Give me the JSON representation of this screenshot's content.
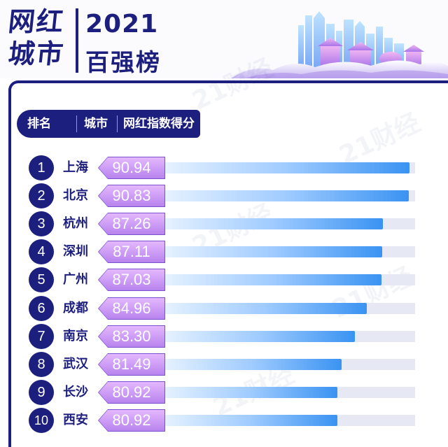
{
  "header": {
    "logo_line1": "网红",
    "logo_line2": "城市",
    "year": "2021",
    "subtitle": "百强榜"
  },
  "table": {
    "col_rank": "排名",
    "col_city": "城市",
    "col_score": "网红指数得分"
  },
  "watermark": "21财经",
  "colors": {
    "navy": "#1d1f7e",
    "score_fill": "#c99cf6",
    "bar_start": "#e6f2ff",
    "bar_end": "#3a93f2",
    "track": "#e6e9f3"
  },
  "chart_data": {
    "type": "bar",
    "orientation": "horizontal",
    "categories": [
      "上海",
      "北京",
      "杭州",
      "深圳",
      "广州",
      "成都",
      "南京",
      "武汉",
      "长沙",
      "西安"
    ],
    "ranks": [
      "1",
      "2",
      "3",
      "4",
      "5",
      "6",
      "7",
      "8",
      "9",
      "10"
    ],
    "values": [
      90.94,
      90.83,
      87.26,
      87.11,
      87.03,
      84.96,
      83.3,
      81.49,
      80.92,
      80.92
    ],
    "value_labels": [
      "90.94",
      "90.83",
      "87.26",
      "87.11",
      "87.03",
      "84.96",
      "83.30",
      "81.49",
      "80.92",
      "80.92"
    ]
  }
}
